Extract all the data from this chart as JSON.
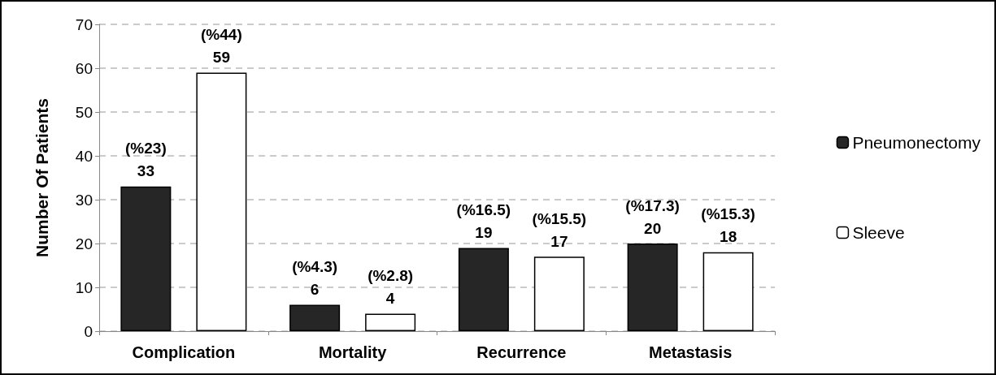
{
  "chart_data": {
    "type": "bar",
    "ylabel": "Number Of Patients",
    "categories": [
      "Complication",
      "Mortality",
      "Recurrence",
      "Metastasis"
    ],
    "series": [
      {
        "name": "Pneumonectomy",
        "color": "#262626",
        "values": [
          33,
          6,
          19,
          20
        ],
        "value_labels": [
          "(%23)\n33",
          "(%4.3)\n6",
          "(%16.5)\n19",
          "(%17.3)\n20"
        ]
      },
      {
        "name": "Sleeve",
        "color": "#ffffff",
        "values": [
          59,
          4,
          17,
          18
        ],
        "value_labels": [
          "(%44)\n59",
          "(%2.8)\n4",
          "(%15.5)\n17",
          "(%15.3)\n18"
        ]
      }
    ],
    "ylim": [
      0,
      70
    ],
    "yticks": [
      0,
      10,
      20,
      30,
      40,
      50,
      60,
      70
    ],
    "grid": "y",
    "legend": "right"
  }
}
